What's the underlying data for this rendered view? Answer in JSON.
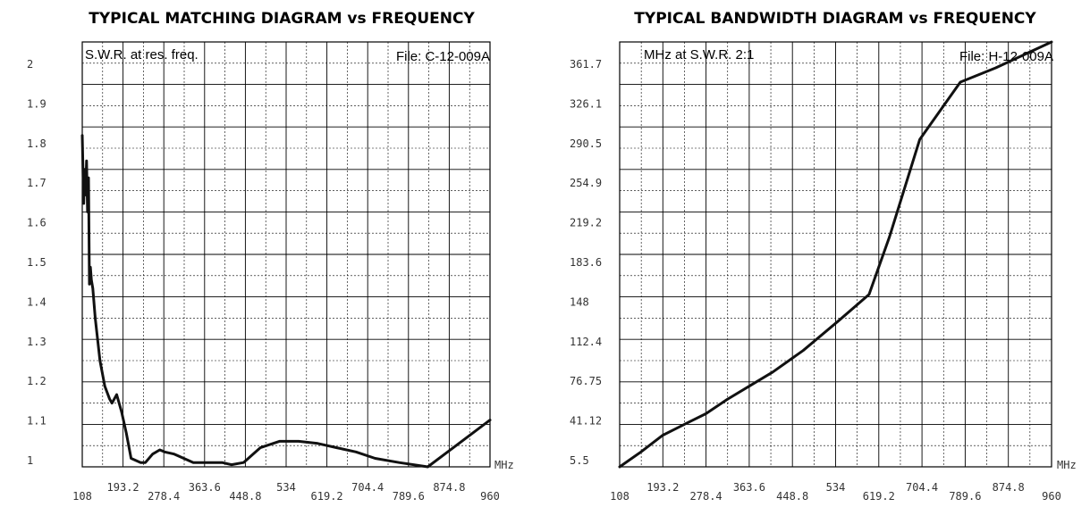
{
  "chart_data": [
    {
      "type": "line",
      "title": "TYPICAL MATCHING DIAGRAM vs FREQUENCY",
      "subtitle": "S.W.R. at res. freq.",
      "file_label": "File:  C-12-009A",
      "xlabel": "MHz",
      "ylabel": "",
      "xlim": [
        108,
        960
      ],
      "ylim": [
        1,
        2
      ],
      "x_ticks_upper": [
        "193.2",
        "363.6",
        "534",
        "704.4",
        "874.8"
      ],
      "x_ticks_lower": [
        "108",
        "278.4",
        "448.8",
        "619.2",
        "789.6",
        "960"
      ],
      "y_ticks": [
        "2",
        "1.9",
        "1.8",
        "1.7",
        "1.6",
        "1.5",
        "1.4",
        "1.3",
        "1.2",
        "1.1",
        "1"
      ],
      "grid": true,
      "series": [
        {
          "x": [
            108,
            111,
            113,
            115,
            117,
            119,
            121,
            123,
            125,
            127,
            130,
            135,
            145,
            155,
            165,
            170,
            175,
            180,
            190,
            200,
            210,
            230,
            240,
            255,
            270,
            280,
            300,
            320,
            340,
            360,
            380,
            400,
            420,
            445,
            480,
            520,
            560,
            600,
            640,
            680,
            720,
            770,
            830,
            960
          ],
          "y": [
            1.78,
            1.62,
            1.7,
            1.64,
            1.72,
            1.6,
            1.68,
            1.43,
            1.47,
            1.44,
            1.42,
            1.35,
            1.25,
            1.19,
            1.16,
            1.15,
            1.16,
            1.17,
            1.13,
            1.08,
            1.02,
            1.01,
            1.01,
            1.03,
            1.04,
            1.035,
            1.03,
            1.02,
            1.01,
            1.01,
            1.01,
            1.01,
            1.005,
            1.01,
            1.045,
            1.06,
            1.06,
            1.055,
            1.045,
            1.035,
            1.02,
            1.01,
            1.0,
            1.11
          ]
        }
      ]
    },
    {
      "type": "line",
      "title": "TYPICAL BANDWIDTH DIAGRAM vs FREQUENCY",
      "subtitle": "MHz at S.W.R.  2:1",
      "file_label": "File:  H-12-009A",
      "xlabel": "MHz",
      "ylabel": "",
      "xlim": [
        108,
        960
      ],
      "ylim": [
        5.5,
        361.7
      ],
      "x_ticks_upper": [
        "193.2",
        "363.6",
        "534",
        "704.4",
        "874.8"
      ],
      "x_ticks_lower": [
        "108",
        "278.4",
        "448.8",
        "619.2",
        "789.6",
        "960"
      ],
      "y_ticks": [
        "361.7",
        "326.1",
        "290.5",
        "254.9",
        "219.2",
        "183.6",
        "148",
        "112.4",
        "76.75",
        "41.12",
        "5.5"
      ],
      "grid": true,
      "series": [
        {
          "x": [
            108,
            150,
            193,
            240,
            278,
            320,
            363,
            410,
            470,
            540,
            600,
            640,
            700,
            780,
            850,
            960
          ],
          "y": [
            5.5,
            18,
            32,
            42,
            50,
            62,
            73,
            85,
            103,
            128,
            150,
            198,
            280,
            328,
            340,
            361.7
          ]
        }
      ]
    }
  ]
}
